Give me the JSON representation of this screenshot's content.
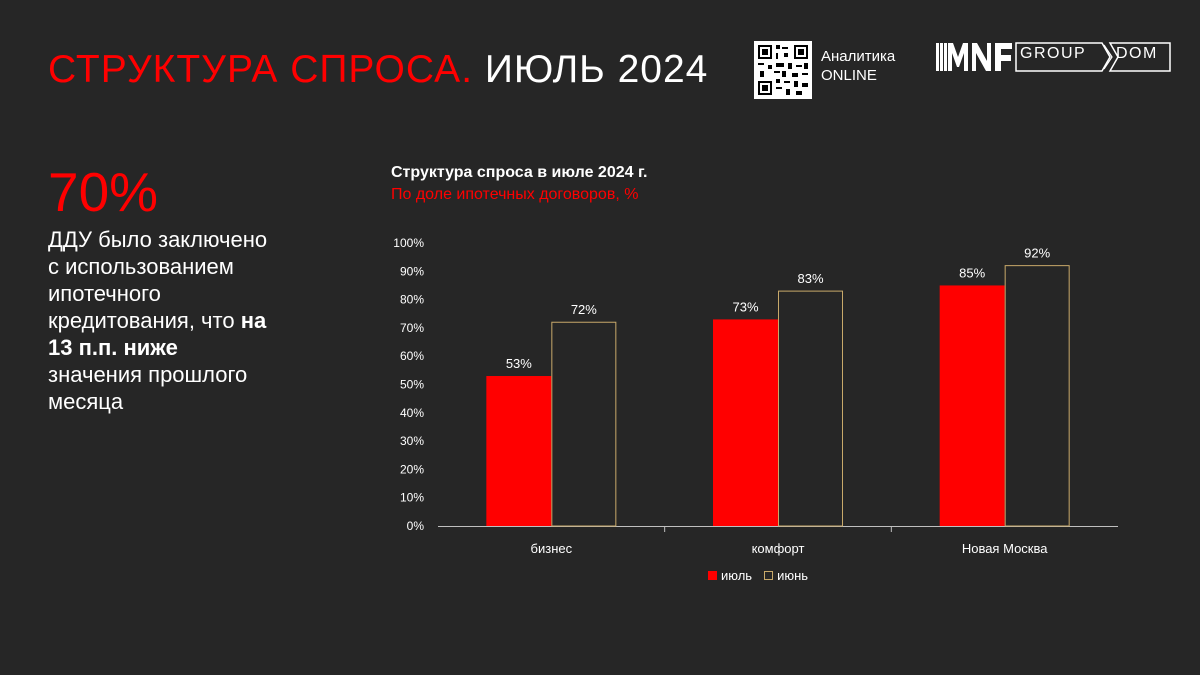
{
  "header": {
    "title_red": "СТРУКТУРА СПРОСА.",
    "title_white": "ИЮЛЬ 2024",
    "qr_label_line1": "Аналитика",
    "qr_label_line2": "ONLINE",
    "logo_group": "GROUP",
    "logo_dom": "DOM",
    "logo_icon": "mnf-logo-icon"
  },
  "summary": {
    "big_value": "70%",
    "text_before": "ДДУ было заключено с использованием ипотечного кредитования, что ",
    "text_bold": "на 13 п.п. ниже",
    "text_after": " значения прошлого месяца"
  },
  "chart_data": {
    "type": "bar",
    "title": "Структура спроса в июле 2024 г.",
    "subtitle": "По доле ипотечных договоров, %",
    "categories": [
      "бизнес",
      "комфорт",
      "Новая Москва"
    ],
    "series": [
      {
        "name": "июль",
        "values": [
          53,
          73,
          85
        ],
        "color": "#ff0000"
      },
      {
        "name": "июнь",
        "values": [
          72,
          83,
          92
        ],
        "color": "#262626",
        "border": "#c8a96a"
      }
    ],
    "ylim": [
      0,
      100
    ],
    "yticks": [
      "0%",
      "10%",
      "20%",
      "30%",
      "40%",
      "50%",
      "60%",
      "70%",
      "80%",
      "90%",
      "100%"
    ],
    "value_suffix": "%",
    "grid": false,
    "legend_position": "bottom"
  }
}
